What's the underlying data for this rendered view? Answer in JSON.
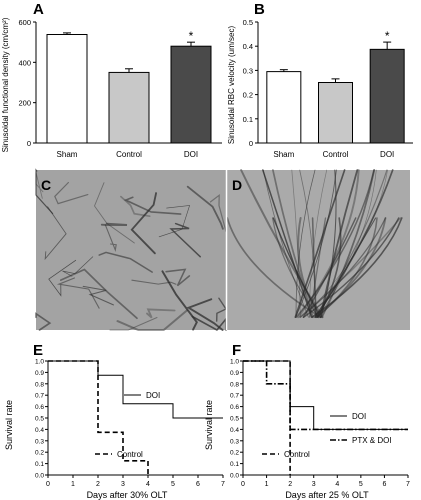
{
  "chart_data": [
    {
      "panel": "A",
      "type": "bar",
      "ylabel": "Sinusoidal functional density (cm/cm²)",
      "categories": [
        "Sham",
        "Control",
        "DOI"
      ],
      "values": [
        538,
        350,
        480
      ],
      "errors": [
        8,
        18,
        20
      ],
      "ylim": [
        0,
        600
      ],
      "yticks": [
        "0",
        "200",
        "400",
        "600"
      ],
      "fills": [
        "#ffffff",
        "#c8c8c8",
        "#4a4a4a"
      ],
      "significance": [
        "",
        "",
        "*"
      ]
    },
    {
      "panel": "B",
      "type": "bar",
      "ylabel": "Sinusoidal RBC velocity (um/sec)",
      "categories": [
        "Sham",
        "Control",
        "DOI"
      ],
      "values": [
        0.295,
        0.25,
        0.387
      ],
      "errors": [
        0.008,
        0.015,
        0.03
      ],
      "ylim": [
        0,
        0.5
      ],
      "yticks": [
        "0",
        "0.1",
        "0.2",
        "0.3",
        "0.4",
        "0.5"
      ],
      "fills": [
        "#ffffff",
        "#c8c8c8",
        "#4a4a4a"
      ],
      "significance": [
        "",
        "",
        "*"
      ]
    },
    {
      "panel": "E",
      "type": "line",
      "xlabel": "Days after 30% OLT",
      "ylabel": "Survival rate",
      "xlim": [
        0,
        7
      ],
      "ylim": [
        0,
        1
      ],
      "xticks": [
        "0",
        "1",
        "2",
        "3",
        "4",
        "5",
        "6",
        "7"
      ],
      "yticks": [
        "0.0",
        "0.1",
        "0.2",
        "0.3",
        "0.4",
        "0.5",
        "0.6",
        "0.7",
        "0.8",
        "0.9",
        "1.0"
      ],
      "series": [
        {
          "name": "DOI",
          "style": "solid",
          "x": [
            0,
            2,
            2,
            3,
            3,
            5,
            5,
            7
          ],
          "y": [
            1.0,
            1.0,
            0.875,
            0.875,
            0.625,
            0.625,
            0.5,
            0.5
          ]
        },
        {
          "name": "Control",
          "style": "dashed",
          "x": [
            0,
            2,
            2,
            3,
            3,
            4,
            4
          ],
          "y": [
            1.0,
            1.0,
            0.375,
            0.375,
            0.125,
            0.125,
            0.0
          ]
        }
      ]
    },
    {
      "panel": "F",
      "type": "line",
      "xlabel": "Days after 25 % OLT",
      "ylabel": "Survival rate",
      "xlim": [
        0,
        7
      ],
      "ylim": [
        0,
        1
      ],
      "xticks": [
        "0",
        "1",
        "2",
        "3",
        "4",
        "5",
        "6",
        "7"
      ],
      "yticks": [
        "0.0",
        "0.1",
        "0.2",
        "0.3",
        "0.4",
        "0.5",
        "0.6",
        "0.7",
        "0.8",
        "0.9",
        "1.0"
      ],
      "series": [
        {
          "name": "DOI",
          "style": "solid",
          "x": [
            0,
            2,
            2,
            3,
            3,
            7
          ],
          "y": [
            1.0,
            1.0,
            0.6,
            0.6,
            0.4,
            0.4
          ]
        },
        {
          "name": "PTX & DOI",
          "style": "dashdot",
          "x": [
            0,
            1,
            1,
            2,
            2,
            7
          ],
          "y": [
            1.0,
            1.0,
            0.8,
            0.8,
            0.4,
            0.4
          ]
        },
        {
          "name": "Control",
          "style": "dashed",
          "x": [
            0,
            2,
            2
          ],
          "y": [
            1.0,
            1.0,
            0.0
          ]
        }
      ]
    }
  ],
  "micrographs": [
    {
      "label": "C",
      "background": "#a3a3a3",
      "vessel": "#2e2e2e"
    },
    {
      "label": "D",
      "background": "#aaaaaa",
      "vessel": "#2a2a2a"
    }
  ]
}
